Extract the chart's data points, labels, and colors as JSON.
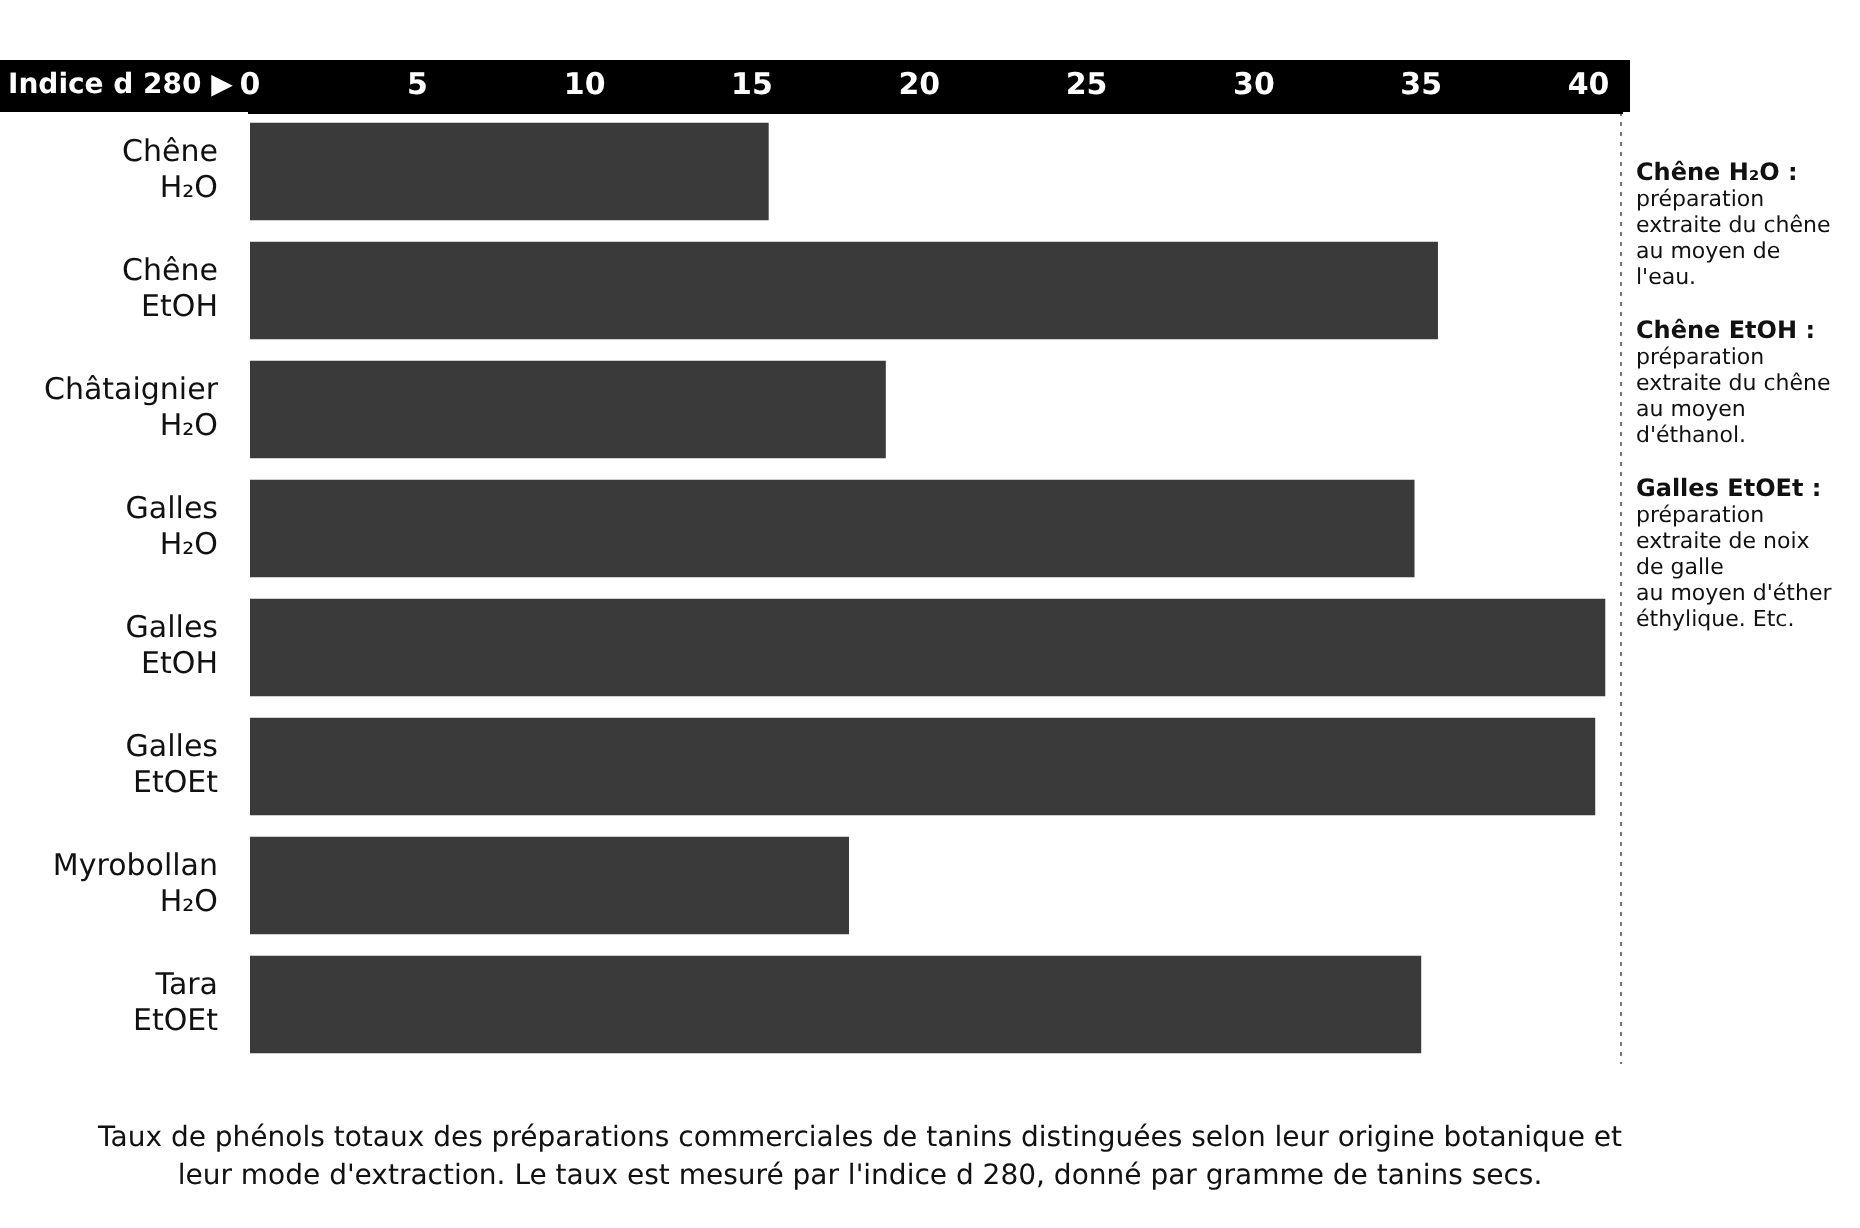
{
  "chart_data": {
    "type": "bar",
    "orientation": "horizontal",
    "xlabel": "Indice d 280 ▶",
    "categories": [
      "Chêne H₂O",
      "Chêne EtOH",
      "Châtaignier H₂O",
      "Galles H₂O",
      "Galles EtOH",
      "Galles EtOEt",
      "Myrobollan H₂O",
      "Tara EtOEt"
    ],
    "values": [
      15.5,
      35.5,
      19,
      34.8,
      40.5,
      40.2,
      17.9,
      35
    ],
    "color": "#3a3a3a",
    "xlim": [
      0,
      41
    ],
    "xticks": [
      0,
      5,
      10,
      15,
      20,
      25,
      30,
      35,
      40
    ],
    "grid": false,
    "legend": false,
    "annotations": [
      "Chêne H₂O :\npréparation\nextraite du chêne\nau moyen de\nl'eau.",
      "Chêne EtOH :\npréparation\nextraite du chêne\nau moyen\nd'éthanol.",
      "Galles EtOEt :\npréparation\nextraite de noix\nde galle\nau moyen d'éther\néthylique. Etc.",
      "Taux de phénols totaux des préparations commerciales de tanins distinguées selon leur origine botanique et leur mode d'extraction. Le taux est mesuré par l'indice d 280, donné par gramme de tanins secs."
    ]
  }
}
